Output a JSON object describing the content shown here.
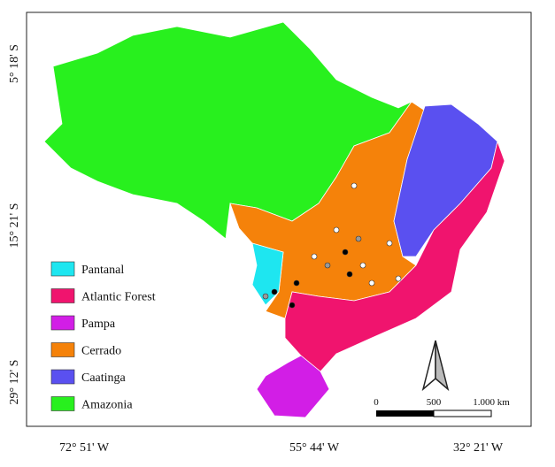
{
  "map": {
    "latitude_labels": [
      "5° 18' S",
      "15° 21' S",
      "29° 12' S"
    ],
    "longitude_labels": [
      "72° 51' W",
      "55° 44' W",
      "32° 21' W"
    ],
    "legend": [
      {
        "label": "Pantanal",
        "color": "#1ee6f0"
      },
      {
        "label": "Atlantic Forest",
        "color": "#f0146e"
      },
      {
        "label": "Pampa",
        "color": "#d21ee6"
      },
      {
        "label": "Cerrado",
        "color": "#f5820a"
      },
      {
        "label": "Caatinga",
        "color": "#5a50f0"
      },
      {
        "label": "Amazonia",
        "color": "#28f01e"
      }
    ],
    "scale_bar": {
      "labels": [
        "0",
        "500",
        "1.000 km"
      ]
    }
  }
}
